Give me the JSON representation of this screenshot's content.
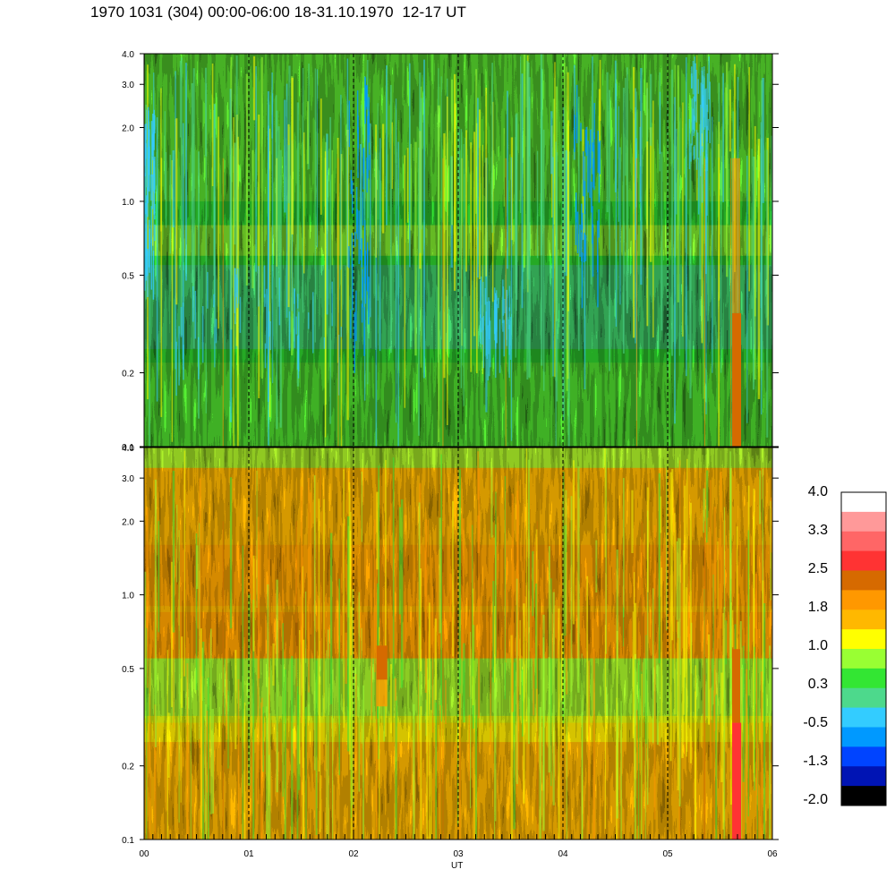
{
  "title": "1970 1031 (304) 00:00-06:00 18-31.10.1970  12-17 UT",
  "chart_data": [
    {
      "type": "heatmap",
      "panel": "upper",
      "x_range": [
        0,
        6
      ],
      "y_scale": "log",
      "y_range": [
        0.1,
        4.0
      ],
      "y_ticks": [
        "4.0",
        "3.0",
        "2.0",
        "1.0",
        "0.5",
        "0.2",
        "0.1"
      ],
      "y_tick_values": [
        4.0,
        3.0,
        2.0,
        1.0,
        0.5,
        0.2,
        0.1
      ],
      "dashed_vertical_lines_at_x": [
        1,
        2,
        3,
        4,
        5
      ],
      "dominant_levels": [
        "0.3 to 1.0 (green, yellow-green)",
        "-0.5 to -1.3 (blue) near x=2.0-2.1 and x=4.2, 1.0-3.0 on y"
      ],
      "bright_feature": {
        "x": 5.65,
        "y_from": 0.1,
        "y_to": 1.5,
        "level": 2.0
      }
    },
    {
      "type": "heatmap",
      "panel": "lower",
      "x_range": [
        0,
        6
      ],
      "y_scale": "log",
      "y_range": [
        0.1,
        4.0
      ],
      "y_ticks": [
        "4.0",
        "3.0",
        "2.0",
        "1.0",
        "0.5",
        "0.2",
        "0.1"
      ],
      "y_tick_values": [
        4.0,
        3.0,
        2.0,
        1.0,
        0.5,
        0.2,
        0.1
      ],
      "x_ticks": [
        "00",
        "01",
        "02",
        "03",
        "04",
        "05",
        "06"
      ],
      "x_tick_values": [
        0,
        1,
        2,
        3,
        4,
        5,
        6
      ],
      "xlabel": "UT",
      "dashed_vertical_lines_at_x": [
        1,
        2,
        3,
        4,
        5
      ],
      "dominant_levels": [
        "1.0 to 2.0 (yellow, orange)",
        "0.3 to 1.0 (green) near y=0.3-0.5"
      ],
      "bright_feature": {
        "x": 5.65,
        "y_from": 0.1,
        "y_to": 0.6,
        "level": 2.9
      }
    }
  ],
  "colorbar": {
    "labels": [
      "4.0",
      "3.3",
      "2.5",
      "1.8",
      "1.0",
      "0.3",
      "-0.5",
      "-1.3",
      "-2.0"
    ],
    "colors": [
      "#ffffff",
      "#ff9999",
      "#ff6666",
      "#ff3333",
      "#d66a00",
      "#ff9800",
      "#ffb800",
      "#ffff00",
      "#99ff33",
      "#33e633",
      "#4dd98c",
      "#33ccff",
      "#0099ff",
      "#0044ff",
      "#0014b4",
      "#000000"
    ]
  }
}
